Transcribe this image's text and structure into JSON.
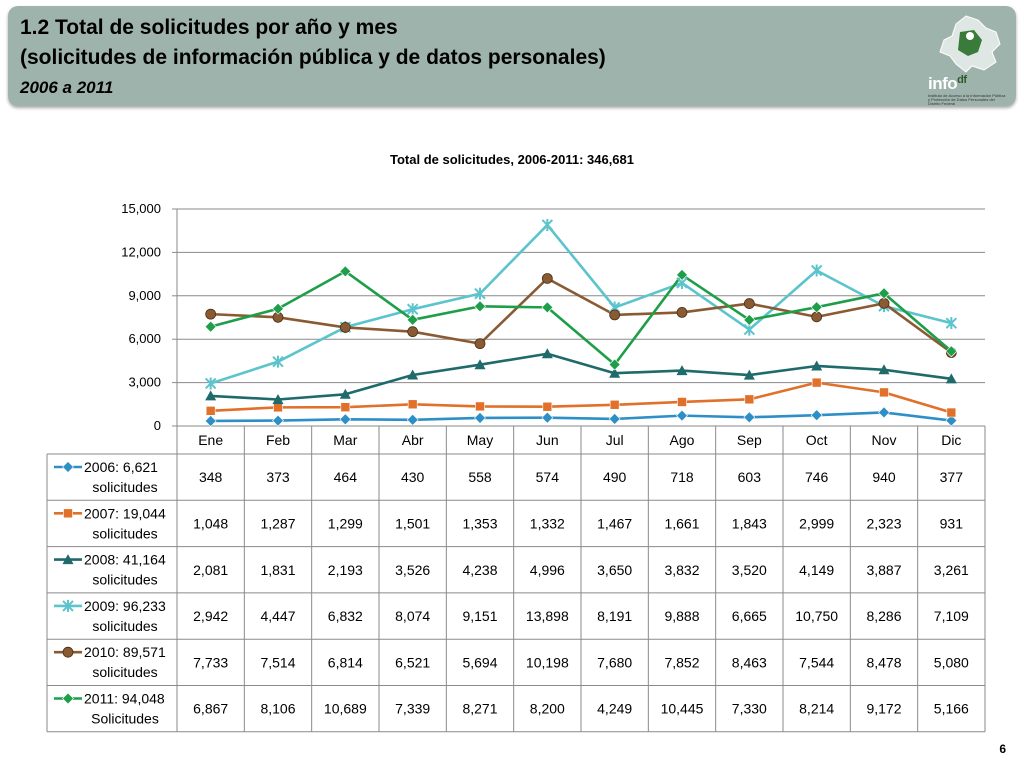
{
  "header": {
    "title_line1": "1.2 Total de solicitudes por año y mes",
    "title_line2": "(solicitudes de información pública y de datos personales)",
    "title_line3": "2006 a 2011"
  },
  "logo": {
    "text": "info",
    "suffix": "df",
    "icon": "mexico-city-map-icon",
    "tagline": "Instituto de Acceso a la Información Pública y Protección de Datos Personales del Distrito Federal"
  },
  "page_number": "6",
  "chart_data": {
    "type": "line",
    "title": "Total de solicitudes, 2006-2011: 346,681",
    "categories": [
      "Ene",
      "Feb",
      "Mar",
      "Abr",
      "May",
      "Jun",
      "Jul",
      "Ago",
      "Sep",
      "Oct",
      "Nov",
      "Dic"
    ],
    "ylim": [
      0,
      15000
    ],
    "yticks": [
      "0",
      "3,000",
      "6,000",
      "9,000",
      "12,000",
      "15,000"
    ],
    "ytick_values": [
      0,
      3000,
      6000,
      9000,
      12000,
      15000
    ],
    "grid": true,
    "legend": "table-left",
    "series": [
      {
        "line1": "2006: 6,621",
        "line2": "solicitudes",
        "color": "#2e8fc7",
        "marker": "diamond",
        "values": [
          348,
          373,
          464,
          430,
          558,
          574,
          490,
          718,
          603,
          746,
          940,
          377
        ],
        "labels": [
          "348",
          "373",
          "464",
          "430",
          "558",
          "574",
          "490",
          "718",
          "603",
          "746",
          "940",
          "377"
        ]
      },
      {
        "line1": "2007: 19,044",
        "line2": "solicitudes",
        "color": "#e0702a",
        "marker": "square",
        "values": [
          1048,
          1287,
          1299,
          1501,
          1353,
          1332,
          1467,
          1661,
          1843,
          2999,
          2323,
          931
        ],
        "labels": [
          "1,048",
          "1,287",
          "1,299",
          "1,501",
          "1,353",
          "1,332",
          "1,467",
          "1,661",
          "1,843",
          "2,999",
          "2,323",
          "931"
        ]
      },
      {
        "line1": "2008: 41,164",
        "line2": "solicitudes",
        "color": "#1f6a6a",
        "marker": "triangle",
        "values": [
          2081,
          1831,
          2193,
          3526,
          4238,
          4996,
          3650,
          3832,
          3520,
          4149,
          3887,
          3261
        ],
        "labels": [
          "2,081",
          "1,831",
          "2,193",
          "3,526",
          "4,238",
          "4,996",
          "3,650",
          "3,832",
          "3,520",
          "4,149",
          "3,887",
          "3,261"
        ]
      },
      {
        "line1": "2009: 96,233",
        "line2": "solicitudes",
        "color": "#5bc4cc",
        "marker": "star",
        "values": [
          2942,
          4447,
          6832,
          8074,
          9151,
          13898,
          8191,
          9888,
          6665,
          10750,
          8286,
          7109
        ],
        "labels": [
          "2,942",
          "4,447",
          "6,832",
          "8,074",
          "9,151",
          "13,898",
          "8,191",
          "9,888",
          "6,665",
          "10,750",
          "8,286",
          "7,109"
        ]
      },
      {
        "line1": "2010: 89,571",
        "line2": "solicitudes",
        "color": "#8a5a32",
        "marker": "circle",
        "values": [
          7733,
          7514,
          6814,
          6521,
          5694,
          10198,
          7680,
          7852,
          8463,
          7544,
          8478,
          5080
        ],
        "labels": [
          "7,733",
          "7,514",
          "6,814",
          "6,521",
          "5,694",
          "10,198",
          "7,680",
          "7,852",
          "8,463",
          "7,544",
          "8,478",
          "5,080"
        ]
      },
      {
        "line1": "2011: 94,048",
        "line2": "Solicitudes",
        "color": "#1f9e4a",
        "marker": "diamond",
        "values": [
          6867,
          8106,
          10689,
          7339,
          8271,
          8200,
          4249,
          10445,
          7330,
          8214,
          9172,
          5166
        ],
        "labels": [
          "6,867",
          "8,106",
          "10,689",
          "7,339",
          "8,271",
          "8,200",
          "4,249",
          "10,445",
          "7,330",
          "8,214",
          "9,172",
          "5,166"
        ]
      }
    ]
  }
}
